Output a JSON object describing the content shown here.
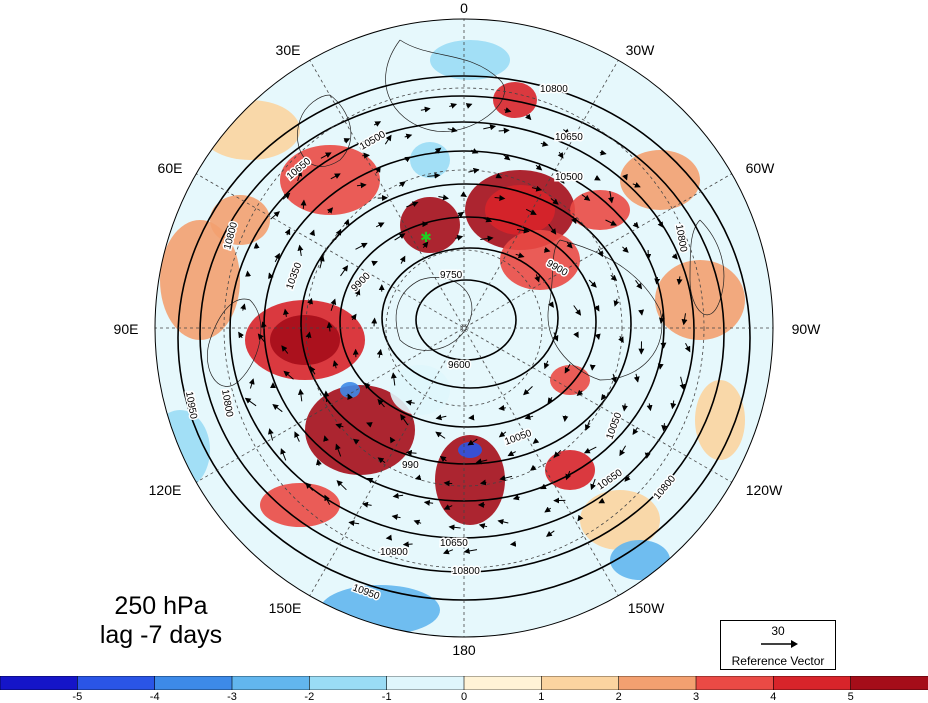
{
  "map": {
    "projection": "north polar stereographic",
    "hemisphere": "Northern Hemisphere",
    "longitude_labels": [
      "0",
      "30W",
      "60W",
      "90W",
      "120W",
      "150W",
      "180",
      "150E",
      "120E",
      "90E",
      "60E",
      "30E"
    ],
    "title_line1": "250 hPa",
    "title_line2": "lag -7 days",
    "marker_color": "#22cc22",
    "contour_labels": [
      "10800",
      "10950",
      "10650",
      "10500",
      "10350",
      "10050",
      "9900",
      "9750",
      "9600",
      "990"
    ]
  },
  "reference_vector": {
    "value": "30",
    "label": "Reference Vector"
  },
  "colorbar": {
    "tick_labels": [
      "-5",
      "-4",
      "-3",
      "-2",
      "-1",
      "0",
      "1",
      "2",
      "3",
      "4",
      "5"
    ],
    "colors": [
      "#1515c8",
      "#2a55e6",
      "#3d8ae8",
      "#62b6ee",
      "#9adcf5",
      "#dff6fc",
      "#fff3d6",
      "#fbd4a0",
      "#f3a070",
      "#ea4a45",
      "#d8242a",
      "#a50d19"
    ]
  }
}
